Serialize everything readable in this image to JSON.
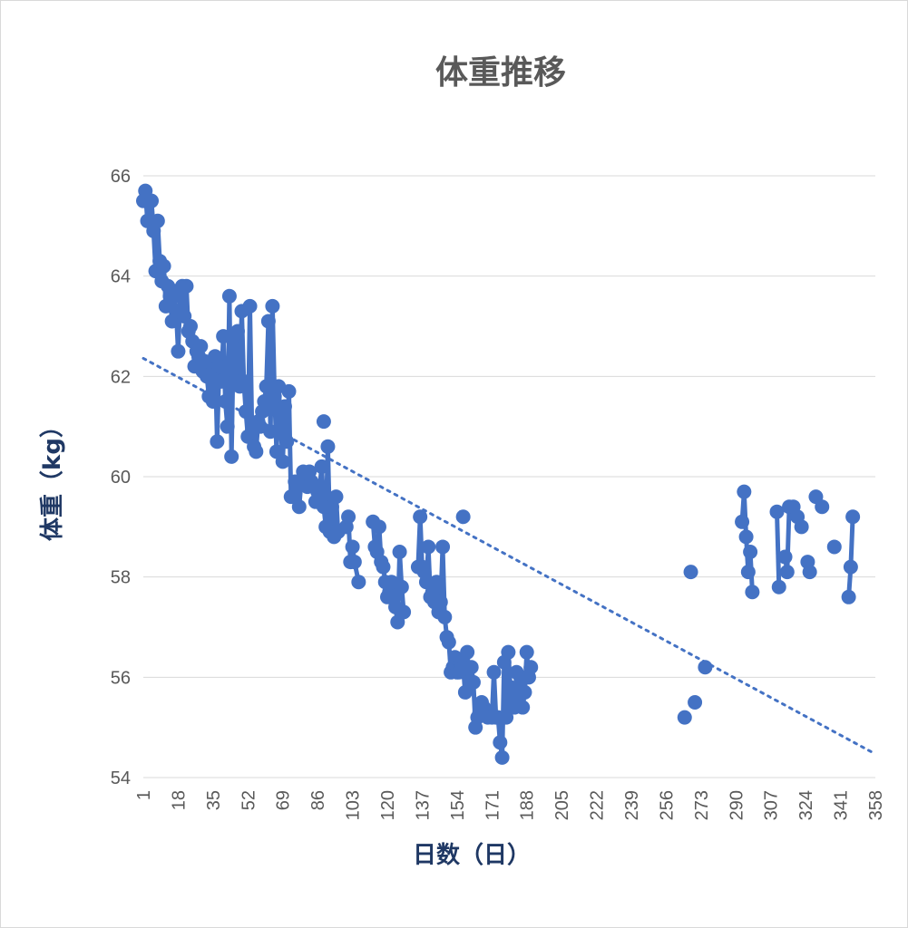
{
  "chart_data": {
    "type": "line",
    "title": "体重推移",
    "xlabel": "日数（日）",
    "ylabel": "体重（kg）",
    "xlim": [
      1,
      358
    ],
    "ylim": [
      54,
      66
    ],
    "y_ticks": [
      54,
      56,
      58,
      60,
      62,
      64,
      66
    ],
    "x_ticks": [
      "1",
      "18",
      "35",
      "52",
      "69",
      "86",
      "103",
      "120",
      "137",
      "154",
      "171",
      "188",
      "205",
      "222",
      "239",
      "256",
      "273",
      "290",
      "307",
      "324",
      "341",
      "358"
    ],
    "grid": true,
    "legend": "none",
    "colors": {
      "series": "#4472c4",
      "trendline": "#4472c4",
      "grid": "#d9d9d9",
      "axis_text": "#595959",
      "axis_title": "#1f3864"
    },
    "series": [
      {
        "type": "line-with-markers",
        "segments": [
          [
            [
              1,
              65.5
            ],
            [
              2,
              65.7
            ],
            [
              3,
              65.1
            ],
            [
              5,
              65.5
            ],
            [
              6,
              64.9
            ],
            [
              7,
              64.1
            ],
            [
              8,
              65.1
            ],
            [
              9,
              64.3
            ],
            [
              10,
              63.9
            ],
            [
              11,
              64.2
            ],
            [
              12,
              63.4
            ],
            [
              13,
              63.8
            ],
            [
              14,
              63.6
            ],
            [
              15,
              63.1
            ],
            [
              16,
              63.7
            ],
            [
              17,
              63.3
            ],
            [
              18,
              62.5
            ],
            [
              19,
              63.6
            ],
            [
              20,
              63.8
            ],
            [
              21,
              63.2
            ],
            [
              22,
              63.8
            ],
            [
              23,
              62.9
            ],
            [
              24,
              63.0
            ],
            [
              25,
              62.7
            ],
            [
              26,
              62.2
            ],
            [
              27,
              62.5
            ],
            [
              28,
              62.4
            ],
            [
              29,
              62.6
            ],
            [
              30,
              62.1
            ],
            [
              31,
              62.3
            ],
            [
              32,
              62.0
            ],
            [
              33,
              61.6
            ],
            [
              34,
              62.3
            ],
            [
              35,
              61.5
            ],
            [
              36,
              62.4
            ],
            [
              37,
              60.7
            ],
            [
              38,
              62.2
            ],
            [
              39,
              61.9
            ],
            [
              40,
              62.8
            ],
            [
              41,
              61.5
            ],
            [
              42,
              61.0
            ],
            [
              43,
              63.6
            ],
            [
              44,
              60.4
            ],
            [
              45,
              62.8
            ],
            [
              46,
              61.9
            ],
            [
              47,
              62.9
            ],
            [
              48,
              61.8
            ],
            [
              49,
              63.3
            ],
            [
              50,
              61.9
            ],
            [
              51,
              61.3
            ],
            [
              52,
              60.8
            ],
            [
              53,
              63.4
            ],
            [
              54,
              60.9
            ],
            [
              55,
              60.6
            ],
            [
              56,
              60.5
            ],
            [
              57,
              61.1
            ],
            [
              58,
              61.0
            ],
            [
              59,
              61.3
            ],
            [
              60,
              61.5
            ],
            [
              61,
              61.8
            ],
            [
              62,
              63.1
            ],
            [
              63,
              60.9
            ],
            [
              64,
              63.4
            ],
            [
              65,
              61.6
            ],
            [
              66,
              60.5
            ],
            [
              67,
              61.8
            ],
            [
              68,
              61.0
            ],
            [
              69,
              60.3
            ],
            [
              70,
              61.4
            ],
            [
              71,
              60.7
            ],
            [
              72,
              61.7
            ],
            [
              73,
              59.6
            ]
          ],
          [
            [
              74,
              59.6
            ],
            [
              75,
              59.9
            ],
            [
              76,
              59.8
            ],
            [
              77,
              59.4
            ],
            [
              78,
              59.9
            ],
            [
              79,
              60.1
            ],
            [
              80,
              59.9
            ],
            [
              81,
              59.8
            ],
            [
              82,
              60.1
            ],
            [
              83,
              59.9
            ],
            [
              84,
              59.8
            ],
            [
              85,
              59.5
            ],
            [
              86,
              59.7
            ],
            [
              87,
              59.8
            ],
            [
              88,
              60.2
            ],
            [
              89,
              59.4
            ],
            [
              90,
              59.0
            ],
            [
              91,
              60.6
            ],
            [
              92,
              58.9
            ],
            [
              93,
              59.4
            ],
            [
              94,
              58.8
            ],
            [
              95,
              59.6
            ],
            [
              96,
              58.9
            ]
          ],
          [
            [
              100,
              59.0
            ],
            [
              101,
              59.2
            ],
            [
              102,
              58.3
            ],
            [
              103,
              58.6
            ],
            [
              104,
              58.3
            ],
            [
              106,
              57.9
            ]
          ],
          [
            [
              113,
              59.1
            ],
            [
              114,
              58.6
            ],
            [
              115,
              58.5
            ],
            [
              116,
              59.0
            ],
            [
              117,
              58.3
            ],
            [
              118,
              58.2
            ],
            [
              119,
              57.9
            ],
            [
              120,
              57.6
            ],
            [
              121,
              57.7
            ],
            [
              122,
              57.9
            ],
            [
              123,
              57.6
            ],
            [
              124,
              57.4
            ],
            [
              125,
              57.1
            ],
            [
              126,
              58.5
            ],
            [
              127,
              57.8
            ],
            [
              128,
              57.3
            ]
          ],
          [
            [
              135,
              58.2
            ],
            [
              136,
              59.2
            ],
            [
              137,
              58.2
            ],
            [
              138,
              58.1
            ],
            [
              139,
              57.9
            ],
            [
              140,
              58.6
            ],
            [
              141,
              57.6
            ],
            [
              142,
              57.7
            ],
            [
              143,
              57.5
            ],
            [
              144,
              57.9
            ],
            [
              145,
              57.3
            ],
            [
              146,
              57.5
            ],
            [
              147,
              58.6
            ],
            [
              148,
              57.2
            ],
            [
              149,
              56.8
            ],
            [
              150,
              56.7
            ],
            [
              151,
              56.1
            ],
            [
              152,
              56.2
            ],
            [
              153,
              56.4
            ],
            [
              154,
              56.1
            ],
            [
              155,
              56.1
            ],
            [
              156,
              56.3
            ],
            [
              157,
              56.2
            ],
            [
              158,
              55.7
            ],
            [
              159,
              56.5
            ],
            [
              160,
              55.9
            ],
            [
              161,
              56.2
            ],
            [
              162,
              55.9
            ],
            [
              163,
              55.0
            ],
            [
              164,
              55.2
            ],
            [
              165,
              55.3
            ],
            [
              166,
              55.5
            ],
            [
              167,
              55.4
            ],
            [
              168,
              55.3
            ],
            [
              169,
              55.2
            ],
            [
              170,
              55.3
            ],
            [
              171,
              55.2
            ],
            [
              172,
              56.1
            ],
            [
              173,
              55.2
            ],
            [
              174,
              55.2
            ],
            [
              175,
              54.7
            ],
            [
              176,
              54.4
            ],
            [
              177,
              56.3
            ],
            [
              178,
              55.2
            ],
            [
              179,
              56.5
            ],
            [
              180,
              55.8
            ],
            [
              181,
              55.5
            ],
            [
              182,
              55.4
            ],
            [
              183,
              56.1
            ],
            [
              184,
              55.5
            ],
            [
              185,
              56.0
            ],
            [
              186,
              55.4
            ],
            [
              187,
              55.7
            ],
            [
              188,
              56.5
            ],
            [
              189,
              56.0
            ],
            [
              190,
              56.2
            ]
          ]
        ],
        "points": [
          [
            89,
            61.1
          ],
          [
            157,
            59.2
          ],
          [
            265,
            55.2
          ],
          [
            268,
            58.1
          ],
          [
            270,
            55.5
          ],
          [
            275,
            56.2
          ],
          [
            293,
            59.1
          ],
          [
            294,
            59.7
          ],
          [
            295,
            58.8
          ],
          [
            296,
            58.1
          ],
          [
            297,
            58.5
          ],
          [
            298,
            57.7
          ],
          [
            310,
            59.3
          ],
          [
            311,
            57.8
          ],
          [
            314,
            58.4
          ],
          [
            315,
            58.1
          ],
          [
            316,
            59.4
          ],
          [
            318,
            59.4
          ],
          [
            320,
            59.2
          ],
          [
            322,
            59.0
          ],
          [
            325,
            58.3
          ],
          [
            326,
            58.1
          ],
          [
            329,
            59.6
          ],
          [
            332,
            59.4
          ],
          [
            338,
            58.6
          ],
          [
            345,
            57.6
          ],
          [
            346,
            58.2
          ],
          [
            347,
            59.2
          ]
        ],
        "extra_segments": [
          [
            [
              293,
              59.1
            ],
            [
              294,
              59.7
            ],
            [
              295,
              58.8
            ],
            [
              296,
              58.1
            ],
            [
              297,
              58.5
            ],
            [
              298,
              57.7
            ]
          ],
          [
            [
              310,
              59.3
            ],
            [
              311,
              57.8
            ]
          ],
          [
            [
              314,
              58.4
            ],
            [
              315,
              58.1
            ],
            [
              316,
              59.4
            ],
            [
              318,
              59.4
            ],
            [
              320,
              59.2
            ],
            [
              322,
              59.0
            ]
          ],
          [
            [
              325,
              58.3
            ],
            [
              326,
              58.1
            ]
          ],
          [
            [
              345,
              57.6
            ],
            [
              346,
              58.2
            ],
            [
              347,
              59.2
            ]
          ]
        ]
      }
    ],
    "trendline": {
      "style": "dotted",
      "start": [
        1,
        62.36
      ],
      "end": [
        358,
        54.47
      ]
    }
  }
}
